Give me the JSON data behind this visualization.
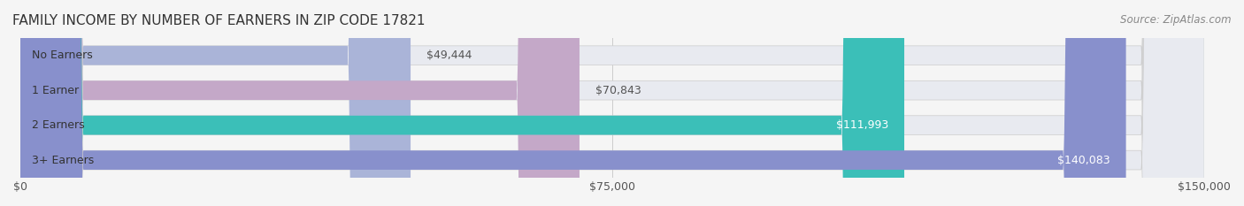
{
  "title": "FAMILY INCOME BY NUMBER OF EARNERS IN ZIP CODE 17821",
  "source": "Source: ZipAtlas.com",
  "categories": [
    "No Earners",
    "1 Earner",
    "2 Earners",
    "3+ Earners"
  ],
  "values": [
    49444,
    70843,
    111993,
    140083
  ],
  "value_labels": [
    "$49,444",
    "$70,843",
    "$111,993",
    "$140,083"
  ],
  "bar_colors": [
    "#aab4d8",
    "#c4a8c8",
    "#3bbfb8",
    "#8890cc"
  ],
  "bar_bg_color": "#e8eaf0",
  "xlim": [
    0,
    150000
  ],
  "xtick_values": [
    0,
    75000,
    150000
  ],
  "xtick_labels": [
    "$0",
    "$75,000",
    "$150,000"
  ],
  "title_fontsize": 11,
  "source_fontsize": 8.5,
  "label_fontsize": 9,
  "value_fontsize": 9,
  "background_color": "#f5f5f5",
  "bar_height": 0.55
}
